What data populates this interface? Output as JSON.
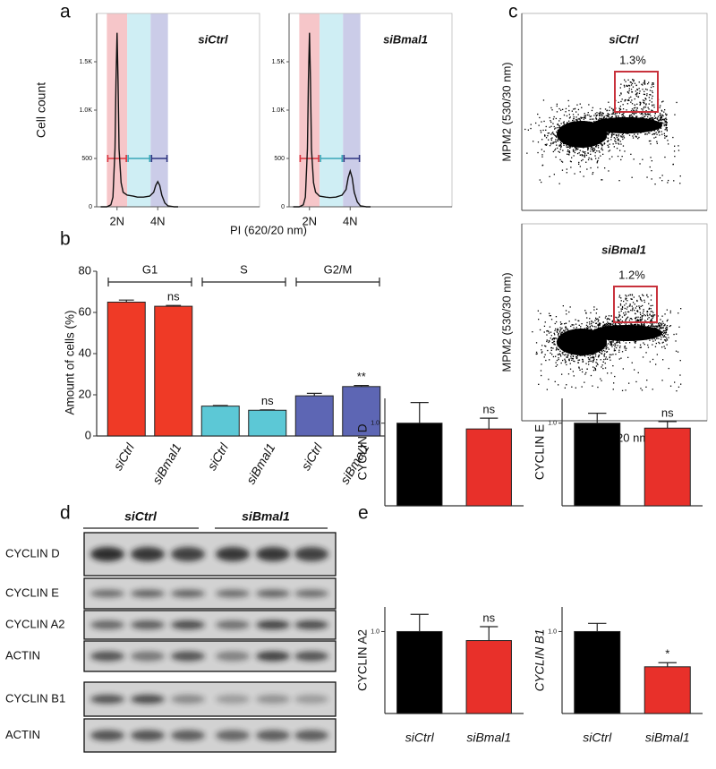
{
  "panel_letters": [
    "a",
    "b",
    "c",
    "d",
    "e"
  ],
  "chart_data": [
    {
      "type": "line",
      "title": "siCtrl",
      "ylabel": "Cell count",
      "xlabel": "PI (620/20 nm)",
      "x": [
        1.2,
        1.5,
        1.7,
        1.8,
        1.9,
        1.95,
        2.0,
        2.05,
        2.1,
        2.2,
        2.3,
        2.5,
        2.8,
        3.0,
        3.3,
        3.6,
        3.8,
        3.9,
        4.0,
        4.1,
        4.2,
        4.35,
        4.5,
        4.8,
        5.0
      ],
      "values": [
        0,
        0,
        20,
        100,
        600,
        1300,
        1800,
        1300,
        600,
        250,
        150,
        120,
        110,
        100,
        100,
        110,
        150,
        220,
        260,
        220,
        120,
        40,
        10,
        0,
        0
      ],
      "color": "#111111",
      "xlim": [
        1,
        9
      ],
      "ylim": [
        0,
        2000
      ],
      "xticks": [
        {
          "value": 2,
          "label": "2N"
        },
        {
          "value": 4,
          "label": "4N"
        }
      ],
      "yticks": [
        0,
        500,
        {
          "value": 1000,
          "label": "1.0K"
        },
        {
          "value": 1500,
          "label": "1.5K"
        }
      ],
      "regions": [
        {
          "range": [
            1.5,
            2.5
          ],
          "color": "#f6c6c9",
          "gate_color": "#d8323c"
        },
        {
          "range": [
            2.5,
            3.65
          ],
          "color": "#cfeef4",
          "gate_color": "#3aa6b8"
        },
        {
          "range": [
            3.65,
            4.5
          ],
          "color": "#cbcce8",
          "gate_color": "#2d3580"
        }
      ],
      "gate_level": 500
    },
    {
      "type": "line",
      "title": "siBmal1",
      "x": [
        1.2,
        1.5,
        1.7,
        1.8,
        1.9,
        1.95,
        2.0,
        2.05,
        2.1,
        2.2,
        2.3,
        2.5,
        2.8,
        3.0,
        3.3,
        3.6,
        3.8,
        3.9,
        4.0,
        4.1,
        4.2,
        4.35,
        4.5,
        4.8,
        5.0
      ],
      "values": [
        0,
        0,
        20,
        100,
        600,
        1300,
        1800,
        1300,
        600,
        250,
        150,
        110,
        100,
        95,
        100,
        120,
        180,
        300,
        370,
        300,
        150,
        50,
        10,
        0,
        0
      ],
      "color": "#111111",
      "xlim": [
        1,
        9
      ],
      "ylim": [
        0,
        2000
      ],
      "xticks": [
        {
          "value": 2,
          "label": "2N"
        },
        {
          "value": 4,
          "label": "4N"
        }
      ],
      "yticks": [
        0,
        500,
        {
          "value": 1000,
          "label": "1.0K"
        },
        {
          "value": 1500,
          "label": "1.5K"
        }
      ],
      "regions": [
        {
          "range": [
            1.5,
            2.5
          ],
          "color": "#f6c6c9",
          "gate_color": "#d8323c"
        },
        {
          "range": [
            2.5,
            3.65
          ],
          "color": "#cfeef4",
          "gate_color": "#3aa6b8"
        },
        {
          "range": [
            3.65,
            4.5
          ],
          "color": "#cbcce8",
          "gate_color": "#2d3580"
        }
      ],
      "gate_level": 500
    },
    {
      "type": "bar",
      "ylabel": "Amount of cells (%)",
      "categories": [
        "siCtrl",
        "siBmal1",
        "siCtrl",
        "siBmal1",
        "siCtrl",
        "siBmal1"
      ],
      "groups": [
        "G1",
        "S",
        "G2/M"
      ],
      "values": [
        65,
        63,
        14.5,
        12.5,
        19.5,
        24
      ],
      "errors": [
        1,
        0.4,
        0.3,
        0.2,
        1.2,
        0.5
      ],
      "colors": [
        "#ef3a26",
        "#ef3a26",
        "#5cc8d6",
        "#5cc8d6",
        "#5d66b4",
        "#5d66b4"
      ],
      "annotations": [
        null,
        "ns",
        null,
        "ns",
        null,
        "**"
      ],
      "ylim": [
        0,
        80
      ],
      "yticks": [
        0,
        20,
        40,
        60,
        80
      ]
    },
    {
      "type": "scatter",
      "title": "siCtrl",
      "ylabel": "MPM2 (530/30 nm)",
      "gate_label": "1.3%",
      "gate_color": "#c8323c"
    },
    {
      "type": "scatter",
      "title": "siBmal1",
      "ylabel": "MPM2 (530/30 nm)",
      "xlabel": "PI (620/20 nm)",
      "gate_label": "1.2%",
      "gate_color": "#c8323c"
    },
    {
      "type": "bar",
      "ylabel": "CYCLIN D",
      "categories": [
        null,
        null
      ],
      "values": [
        1.0,
        0.93
      ],
      "errors": [
        0.25,
        0.13
      ],
      "colors": [
        "#000000",
        "#e8302a"
      ],
      "annotations": [
        null,
        "ns"
      ],
      "ylim": [
        0,
        1.3
      ],
      "yticks": [
        {
          "value": 1,
          "label": "1.0"
        }
      ]
    },
    {
      "type": "bar",
      "ylabel": "CYCLIN E",
      "categories": [
        null,
        null
      ],
      "values": [
        1.0,
        0.94
      ],
      "errors": [
        0.12,
        0.08
      ],
      "colors": [
        "#000000",
        "#e8302a"
      ],
      "annotations": [
        null,
        "ns"
      ],
      "ylim": [
        0,
        1.3
      ],
      "yticks": [
        {
          "value": 1,
          "label": "1.0"
        }
      ]
    },
    {
      "type": "bar",
      "ylabel": "CYCLIN A2",
      "categories": [
        "siCtrl",
        "siBmal1"
      ],
      "values": [
        1.0,
        0.89
      ],
      "errors": [
        0.21,
        0.17
      ],
      "colors": [
        "#000000",
        "#e8302a"
      ],
      "annotations": [
        null,
        "ns"
      ],
      "ylim": [
        0,
        1.3
      ],
      "yticks": [
        {
          "value": 1,
          "label": "1.0"
        }
      ]
    },
    {
      "type": "bar",
      "ylabel": "CYCLIN B1",
      "ylabel_italic": true,
      "categories": [
        "siCtrl",
        "siBmal1"
      ],
      "values": [
        1.0,
        0.57
      ],
      "errors": [
        0.1,
        0.05
      ],
      "colors": [
        "#000000",
        "#e8302a"
      ],
      "annotations": [
        null,
        "*"
      ],
      "ylim": [
        0,
        1.3
      ],
      "yticks": [
        {
          "value": 1,
          "label": "1.0"
        }
      ]
    }
  ],
  "blot": {
    "groups": [
      "siCtrl",
      "siBmal1"
    ],
    "rows": [
      "CYCLIN D",
      "CYCLIN E",
      "CYCLIN A2",
      "ACTIN",
      "CYCLIN B1",
      "ACTIN"
    ]
  }
}
